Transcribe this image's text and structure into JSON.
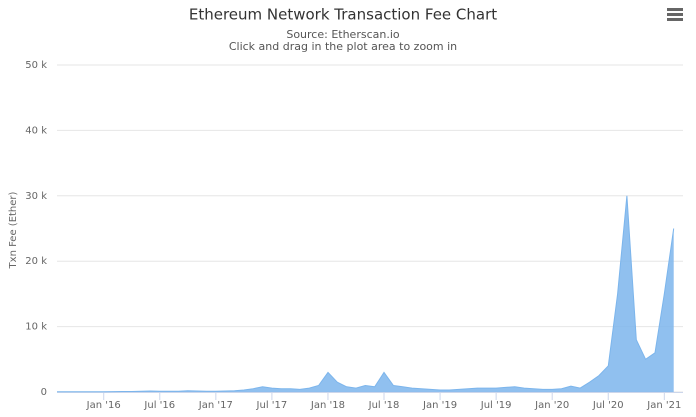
{
  "chart_data": {
    "type": "area",
    "title": "Ethereum Network Transaction Fee Chart",
    "subtitle": "Source: Etherscan.io",
    "note": "Click and drag in the plot area to zoom in",
    "y_label": "Txn Fee (Ether)",
    "color": "#7cb5ec",
    "x": [
      "2015-08",
      "2015-09",
      "2015-10",
      "2015-11",
      "2015-12",
      "2016-01",
      "2016-02",
      "2016-03",
      "2016-04",
      "2016-05",
      "2016-06",
      "2016-07",
      "2016-08",
      "2016-09",
      "2016-10",
      "2016-11",
      "2016-12",
      "2017-01",
      "2017-02",
      "2017-03",
      "2017-04",
      "2017-05",
      "2017-06",
      "2017-07",
      "2017-08",
      "2017-09",
      "2017-10",
      "2017-11",
      "2017-12",
      "2018-01",
      "2018-02",
      "2018-03",
      "2018-04",
      "2018-05",
      "2018-06",
      "2018-07",
      "2018-08",
      "2018-09",
      "2018-10",
      "2018-11",
      "2018-12",
      "2019-01",
      "2019-02",
      "2019-03",
      "2019-04",
      "2019-05",
      "2019-06",
      "2019-07",
      "2019-08",
      "2019-09",
      "2019-10",
      "2019-11",
      "2019-12",
      "2020-01",
      "2020-02",
      "2020-03",
      "2020-04",
      "2020-05",
      "2020-06",
      "2020-07",
      "2020-08",
      "2020-09",
      "2020-10",
      "2020-11",
      "2020-12",
      "2021-01",
      "2021-02"
    ],
    "values": [
      30,
      40,
      30,
      40,
      40,
      50,
      60,
      80,
      80,
      100,
      150,
      120,
      100,
      120,
      200,
      150,
      100,
      100,
      150,
      200,
      300,
      500,
      800,
      600,
      500,
      500,
      400,
      600,
      1000,
      3000,
      1500,
      800,
      600,
      1000,
      800,
      3000,
      1000,
      800,
      600,
      500,
      400,
      300,
      300,
      400,
      500,
      600,
      600,
      600,
      700,
      800,
      600,
      500,
      400,
      400,
      500,
      900,
      600,
      1500,
      2500,
      4000,
      15000,
      30000,
      8000,
      5000,
      6000,
      15000,
      25000
    ],
    "xlim": [
      "2015-08",
      "2021-03"
    ],
    "xticks": [
      {
        "value": "2016-01",
        "label": "Jan '16"
      },
      {
        "value": "2016-07",
        "label": "Jul '16"
      },
      {
        "value": "2017-01",
        "label": "Jan '17"
      },
      {
        "value": "2017-07",
        "label": "Jul '17"
      },
      {
        "value": "2018-01",
        "label": "Jan '18"
      },
      {
        "value": "2018-07",
        "label": "Jul '18"
      },
      {
        "value": "2019-01",
        "label": "Jan '19"
      },
      {
        "value": "2019-07",
        "label": "Jul '19"
      },
      {
        "value": "2020-01",
        "label": "Jan '20"
      },
      {
        "value": "2020-07",
        "label": "Jul '20"
      },
      {
        "value": "2021-01",
        "label": "Jan '21"
      }
    ],
    "ylim": [
      0,
      50000
    ],
    "yticks": [
      0,
      {
        "value": 10000,
        "label": "10 k"
      },
      {
        "value": 20000,
        "label": "20 k"
      },
      {
        "value": 30000,
        "label": "30 k"
      },
      {
        "value": 40000,
        "label": "40 k"
      },
      {
        "value": 50000,
        "label": "50 k"
      }
    ],
    "grid": true
  }
}
